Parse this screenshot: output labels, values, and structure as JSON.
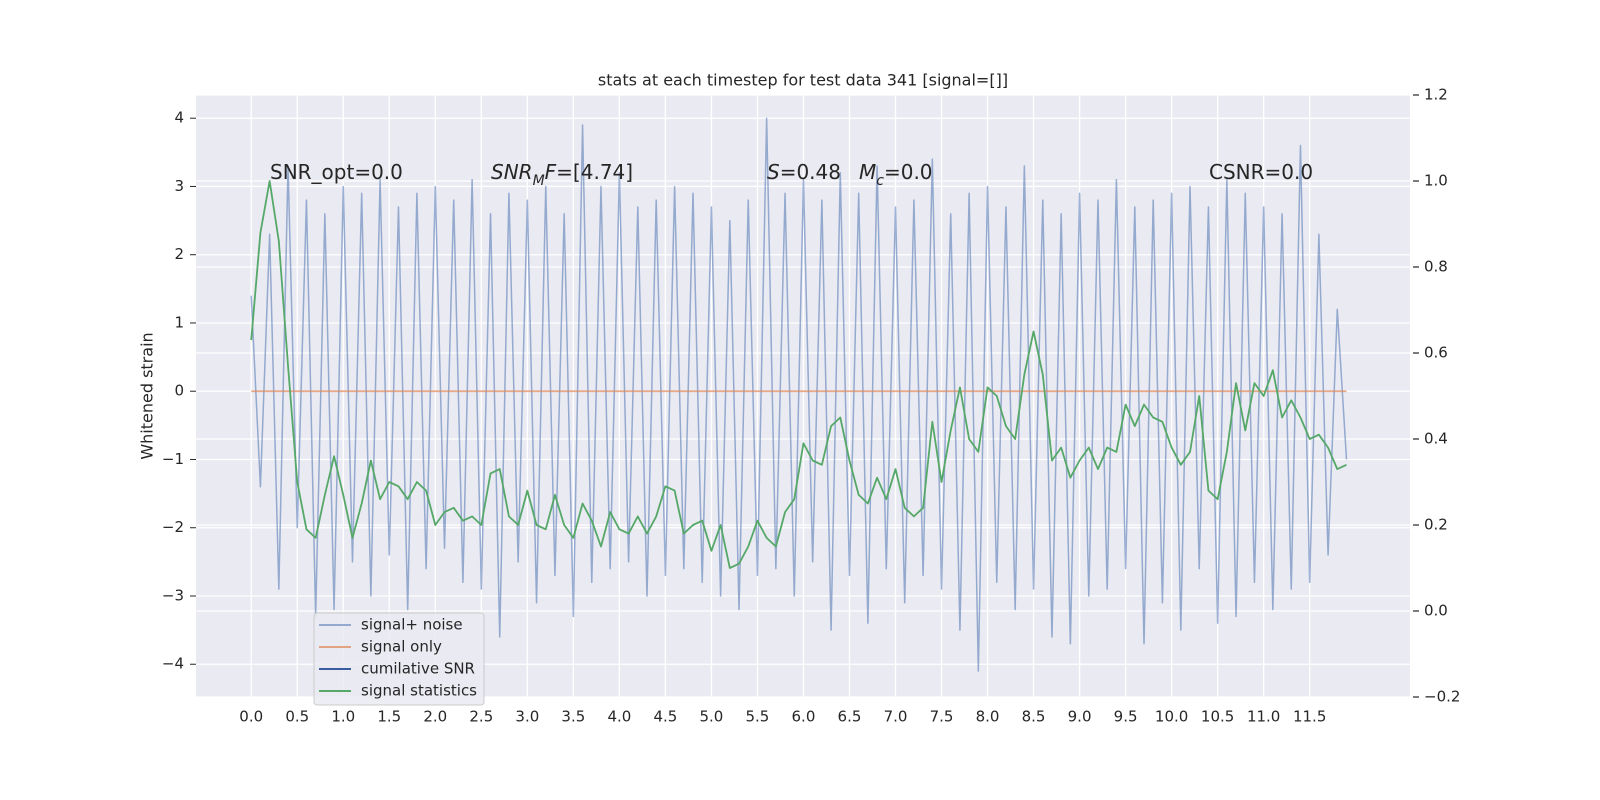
{
  "chart_data": {
    "type": "line",
    "title": "stats at each timestep for test data 341 [signal=[]]",
    "ylabel": "Whitened strain",
    "x": [
      0.0,
      0.1,
      0.2,
      0.3,
      0.4,
      0.5,
      0.6,
      0.7,
      0.8,
      0.9,
      1.0,
      1.1,
      1.2,
      1.3,
      1.4,
      1.5,
      1.6,
      1.7,
      1.8,
      1.9,
      2.0,
      2.1,
      2.2,
      2.3,
      2.4,
      2.5,
      2.6,
      2.7,
      2.8,
      2.9,
      3.0,
      3.1,
      3.2,
      3.3,
      3.4,
      3.5,
      3.6,
      3.7,
      3.8,
      3.9,
      4.0,
      4.1,
      4.2,
      4.3,
      4.4,
      4.5,
      4.6,
      4.7,
      4.8,
      4.9,
      5.0,
      5.1,
      5.2,
      5.3,
      5.4,
      5.5,
      5.6,
      5.7,
      5.8,
      5.9,
      6.0,
      6.1,
      6.2,
      6.3,
      6.4,
      6.5,
      6.6,
      6.7,
      6.8,
      6.9,
      7.0,
      7.1,
      7.2,
      7.3,
      7.4,
      7.5,
      7.6,
      7.7,
      7.8,
      7.9,
      8.0,
      8.1,
      8.2,
      8.3,
      8.4,
      8.5,
      8.6,
      8.7,
      8.8,
      8.9,
      9.0,
      9.1,
      9.2,
      9.3,
      9.4,
      9.5,
      9.6,
      9.7,
      9.8,
      9.9,
      10.0,
      10.1,
      10.2,
      10.3,
      10.4,
      10.5,
      10.6,
      10.7,
      10.8,
      10.9,
      11.0,
      11.1,
      11.2,
      11.3,
      11.4,
      11.5,
      11.6,
      11.7,
      11.8,
      11.9
    ],
    "series": [
      {
        "name": "signal+ noise",
        "color": "#4c72b0",
        "values": [
          1.4,
          -1.4,
          2.3,
          -2.9,
          3.3,
          -2.0,
          2.8,
          -3.3,
          2.6,
          -3.2,
          3.0,
          -2.5,
          2.9,
          -3.0,
          3.1,
          -2.4,
          2.7,
          -3.2,
          2.9,
          -2.6,
          3.0,
          -2.3,
          2.8,
          -2.8,
          3.1,
          -2.9,
          2.6,
          -3.6,
          2.9,
          -2.5,
          2.8,
          -3.1,
          3.0,
          -2.7,
          2.6,
          -3.3,
          3.9,
          -2.8,
          3.0,
          -2.6,
          3.2,
          -2.5,
          2.7,
          -3.0,
          2.8,
          -2.7,
          3.0,
          -2.6,
          2.9,
          -2.8,
          2.7,
          -3.0,
          2.5,
          -3.2,
          2.8,
          -2.7,
          4.0,
          -2.6,
          2.9,
          -3.0,
          3.1,
          -2.5,
          2.8,
          -3.5,
          3.2,
          -2.7,
          2.9,
          -3.4,
          3.3,
          -2.6,
          2.7,
          -3.1,
          2.8,
          -2.7,
          3.4,
          -2.9,
          2.6,
          -3.5,
          2.9,
          -4.1,
          3.0,
          -2.8,
          2.7,
          -3.2,
          3.3,
          -2.9,
          2.8,
          -3.6,
          2.6,
          -3.7,
          2.9,
          -3.0,
          2.8,
          -2.9,
          3.1,
          -2.6,
          2.7,
          -3.7,
          2.8,
          -3.1,
          2.9,
          -3.5,
          3.0,
          -2.6,
          2.7,
          -3.4,
          3.1,
          -3.3,
          2.9,
          -2.8,
          2.7,
          -3.2,
          2.6,
          -2.9,
          3.6,
          -2.8,
          2.3,
          -2.4,
          1.2,
          -1.0
        ]
      },
      {
        "name": "signal only",
        "color": "#dd8452",
        "values": [
          0,
          0,
          0,
          0,
          0,
          0,
          0,
          0,
          0,
          0,
          0,
          0,
          0,
          0,
          0,
          0,
          0,
          0,
          0,
          0,
          0,
          0,
          0,
          0,
          0,
          0,
          0,
          0,
          0,
          0,
          0,
          0,
          0,
          0,
          0,
          0,
          0,
          0,
          0,
          0,
          0,
          0,
          0,
          0,
          0,
          0,
          0,
          0,
          0,
          0,
          0,
          0,
          0,
          0,
          0,
          0,
          0,
          0,
          0,
          0,
          0,
          0,
          0,
          0,
          0,
          0,
          0,
          0,
          0,
          0,
          0,
          0,
          0,
          0,
          0,
          0,
          0,
          0,
          0,
          0,
          0,
          0,
          0,
          0,
          0,
          0,
          0,
          0,
          0,
          0,
          0,
          0,
          0,
          0,
          0,
          0,
          0,
          0,
          0,
          0,
          0,
          0,
          0,
          0,
          0,
          0,
          0,
          0,
          0,
          0,
          0,
          0,
          0,
          0,
          0,
          0,
          0,
          0,
          0,
          0
        ]
      },
      {
        "name": "cumilative SNR",
        "color": "#3a5da0",
        "axis": "y2",
        "values": [
          null,
          null,
          null,
          null,
          null,
          null,
          null,
          null,
          null,
          null,
          null,
          null,
          null,
          null,
          null,
          null,
          null,
          null,
          null,
          null,
          null,
          null,
          null,
          null,
          null,
          null,
          null,
          null,
          null,
          null,
          null,
          null,
          null,
          null,
          null,
          null,
          null,
          null,
          null,
          null,
          null,
          null,
          null,
          null,
          null,
          null,
          null,
          null,
          null,
          null,
          null,
          null,
          null,
          null,
          null,
          null,
          null,
          null,
          null,
          null,
          null,
          null,
          null,
          null,
          null,
          null,
          null,
          null,
          null,
          null,
          null,
          null,
          null,
          null,
          null,
          null,
          null,
          null,
          null,
          null,
          null,
          null,
          null,
          null,
          null,
          null,
          null,
          null,
          null,
          null,
          null,
          null,
          null,
          null,
          null,
          null,
          null,
          null,
          null,
          null,
          null,
          null,
          null,
          null,
          null,
          null,
          null,
          null,
          null,
          null,
          null,
          null,
          null,
          null,
          null,
          null,
          null,
          null,
          null,
          null
        ]
      },
      {
        "name": "signal statistics",
        "color": "#55a868",
        "axis": "y2",
        "values": [
          0.63,
          0.88,
          1.0,
          0.86,
          0.57,
          0.3,
          0.19,
          0.17,
          0.27,
          0.36,
          0.27,
          0.17,
          0.25,
          0.35,
          0.26,
          0.3,
          0.29,
          0.26,
          0.3,
          0.28,
          0.2,
          0.23,
          0.24,
          0.21,
          0.22,
          0.2,
          0.32,
          0.33,
          0.22,
          0.2,
          0.28,
          0.2,
          0.19,
          0.27,
          0.2,
          0.17,
          0.25,
          0.21,
          0.15,
          0.23,
          0.19,
          0.18,
          0.22,
          0.18,
          0.22,
          0.29,
          0.28,
          0.18,
          0.2,
          0.21,
          0.14,
          0.2,
          0.1,
          0.11,
          0.15,
          0.21,
          0.17,
          0.15,
          0.23,
          0.26,
          0.39,
          0.35,
          0.34,
          0.43,
          0.45,
          0.35,
          0.27,
          0.25,
          0.31,
          0.26,
          0.33,
          0.24,
          0.22,
          0.24,
          0.44,
          0.3,
          0.42,
          0.52,
          0.4,
          0.37,
          0.52,
          0.5,
          0.43,
          0.4,
          0.55,
          0.65,
          0.55,
          0.35,
          0.38,
          0.31,
          0.35,
          0.38,
          0.33,
          0.38,
          0.37,
          0.48,
          0.43,
          0.48,
          0.45,
          0.44,
          0.38,
          0.34,
          0.37,
          0.5,
          0.28,
          0.26,
          0.37,
          0.53,
          0.42,
          0.53,
          0.5,
          0.56,
          0.45,
          0.49,
          0.45,
          0.4,
          0.41,
          0.38,
          0.33,
          0.34
        ]
      }
    ],
    "xlim": [
      -0.6,
      12.59
    ],
    "ylim": [
      -4.48,
      4.34
    ],
    "y2lim": [
      -0.2,
      1.2
    ],
    "xticks": [
      {
        "value": 0,
        "label": "0.0"
      },
      0.5,
      {
        "value": 1,
        "label": "1.0"
      },
      1.5,
      {
        "value": 2,
        "label": "2.0"
      },
      2.5,
      {
        "value": 3,
        "label": "3.0"
      },
      3.5,
      {
        "value": 4,
        "label": "4.0"
      },
      4.5,
      {
        "value": 5,
        "label": "5.0"
      },
      5.5,
      {
        "value": 6,
        "label": "6.0"
      },
      6.5,
      {
        "value": 7,
        "label": "7.0"
      },
      7.5,
      {
        "value": 8,
        "label": "8.0"
      },
      8.5,
      {
        "value": 9,
        "label": "9.0"
      },
      9.5,
      {
        "value": 10,
        "label": "10.0"
      },
      10.5,
      {
        "value": 11,
        "label": "11.0"
      },
      11.5
    ],
    "yticks": [
      {
        "value": -4,
        "label": "−4"
      },
      {
        "value": -3,
        "label": "−3"
      },
      {
        "value": -2,
        "label": "−2"
      },
      {
        "value": -1,
        "label": "−1"
      },
      0,
      1,
      2,
      3,
      4
    ],
    "y2ticks": [
      {
        "value": -0.2,
        "label": "−0.2"
      },
      {
        "value": 0,
        "label": "0.0"
      },
      0.2,
      0.4,
      0.6,
      0.8,
      {
        "value": 1,
        "label": "1.0"
      },
      1.2
    ],
    "grid": true,
    "legend": "lower left",
    "annotations": [
      {
        "parts": [
          {
            "text": "SNR_opt=0.0"
          }
        ]
      },
      {
        "parts": [
          {
            "text": "SNR",
            "italic": true
          },
          {
            "text": "M",
            "italic": true,
            "sub": true
          },
          {
            "text": "F",
            "italic": true
          },
          {
            "text": "=[4.74]"
          }
        ]
      },
      {
        "parts": [
          {
            "text": "S",
            "italic": true
          },
          {
            "text": "=0.48"
          }
        ]
      },
      {
        "parts": [
          {
            "text": "M",
            "italic": true
          },
          {
            "text": "c",
            "italic": true,
            "sub": true
          },
          {
            "text": "=0.0"
          }
        ]
      },
      {
        "parts": [
          {
            "text": "CSNR=0.0"
          }
        ]
      }
    ]
  }
}
